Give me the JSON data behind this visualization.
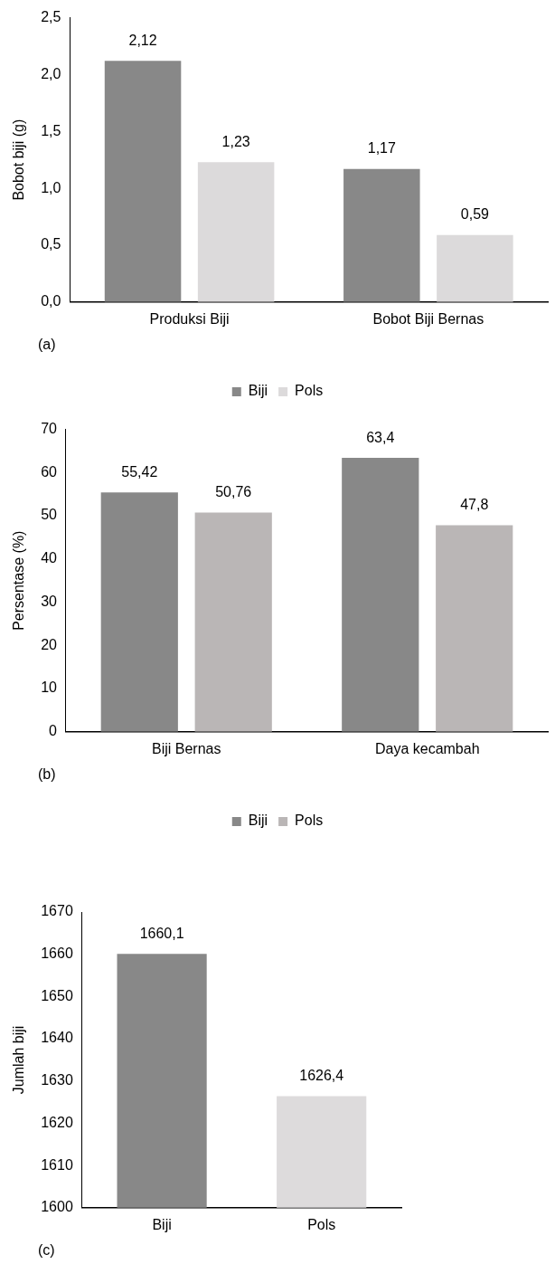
{
  "chart_data": [
    {
      "type": "bar",
      "ylabel": "Bobot biji (g)",
      "categories": [
        "Produksi Biji",
        "Bobot Biji Bernas"
      ],
      "series": [
        {
          "name": "Biji",
          "color": "#888888",
          "values": [
            2.12,
            1.17
          ],
          "value_labels": [
            "2,12",
            "1,17"
          ]
        },
        {
          "name": "Pols",
          "color": "#dcdadb",
          "values": [
            1.23,
            0.59
          ],
          "value_labels": [
            "1,23",
            "0,59"
          ]
        }
      ],
      "ylim": [
        0,
        2.5
      ],
      "yticks": [
        {
          "value": 0,
          "label": "0,0"
        },
        {
          "value": 0.5,
          "label": "0,5"
        },
        {
          "value": 1,
          "label": "1,0"
        },
        {
          "value": 1.5,
          "label": "1,5"
        },
        {
          "value": 2,
          "label": "2,0"
        },
        {
          "value": 2.5,
          "label": "2,5"
        }
      ],
      "grid": false,
      "legend": "bottom",
      "annotations": [
        "(a)"
      ]
    },
    {
      "type": "bar",
      "ylabel": "Persentase (%)",
      "categories": [
        "Biji Bernas",
        "Daya kecambah"
      ],
      "series": [
        {
          "name": "Biji",
          "color": "#888888",
          "values": [
            55.42,
            63.4
          ],
          "value_labels": [
            "55,42",
            "63,4"
          ]
        },
        {
          "name": "Pols",
          "color": "#bab6b6",
          "values": [
            50.76,
            47.8
          ],
          "value_labels": [
            "50,76",
            "47,8"
          ]
        }
      ],
      "ylim": [
        0,
        70
      ],
      "yticks": [
        0,
        10,
        20,
        30,
        40,
        50,
        60,
        70
      ],
      "grid": false,
      "legend": "bottom",
      "annotations": [
        "(b)"
      ]
    },
    {
      "type": "bar",
      "ylabel": "Jumlah biji",
      "categories": [
        "Biji",
        "Pols"
      ],
      "values": [
        1660.1,
        1626.4
      ],
      "colors": [
        "#888888",
        "#dddbdc"
      ],
      "value_labels": [
        "1660,1",
        "1626,4"
      ],
      "ylim": [
        1600,
        1670
      ],
      "yticks": [
        1600,
        1610,
        1620,
        1630,
        1640,
        1650,
        1660,
        1670
      ],
      "grid": false,
      "legend": false,
      "annotations": [
        "(c)"
      ]
    }
  ]
}
